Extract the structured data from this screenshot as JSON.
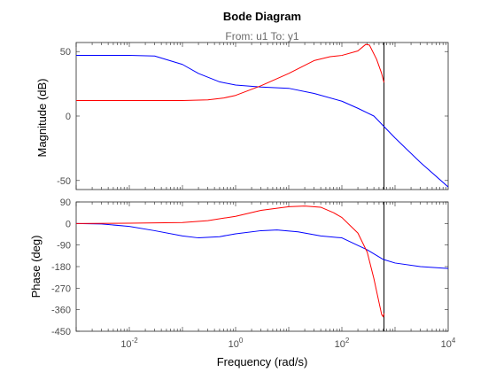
{
  "chart_data": {
    "type": "line",
    "title": "Bode Diagram",
    "subtitle": "From: u1  To: y1",
    "xlabel": "Frequency  (rad/s)",
    "xscale": "log",
    "xlim": [
      0.001,
      10000
    ],
    "x_ticks": [
      {
        "base": "10",
        "exp": "-2",
        "value": 0.01
      },
      {
        "base": "10",
        "exp": "0",
        "value": 1
      },
      {
        "base": "10",
        "exp": "2",
        "value": 100
      },
      {
        "base": "10",
        "exp": "4",
        "value": 10000
      }
    ],
    "grid": false,
    "vertical_marker": {
      "x": 620,
      "color": "#000000"
    },
    "panels": [
      {
        "name": "magnitude",
        "ylabel": "Magnitude (dB)",
        "ylim": [
          -57,
          57
        ],
        "yticks": [
          50,
          0,
          -50
        ],
        "ytick_labels": [
          "50",
          "0",
          "-50"
        ],
        "series": [
          {
            "color": "#0000ff",
            "points": [
              [
                0.001,
                47
              ],
              [
                0.01,
                47
              ],
              [
                0.03,
                46.5
              ],
              [
                0.1,
                40
              ],
              [
                0.2,
                33
              ],
              [
                0.5,
                26.5
              ],
              [
                1,
                24
              ],
              [
                3,
                22.5
              ],
              [
                10,
                21.5
              ],
              [
                30,
                17.5
              ],
              [
                100,
                11.5
              ],
              [
                200,
                6
              ],
              [
                400,
                0
              ],
              [
                1000,
                -17
              ],
              [
                3000,
                -36
              ],
              [
                10000,
                -55
              ]
            ]
          },
          {
            "color": "#ff0000",
            "points": [
              [
                0.001,
                12
              ],
              [
                0.01,
                12
              ],
              [
                0.1,
                12
              ],
              [
                0.3,
                12.5
              ],
              [
                0.6,
                14
              ],
              [
                1,
                16
              ],
              [
                3,
                23.5
              ],
              [
                10,
                33
              ],
              [
                30,
                43
              ],
              [
                60,
                46
              ],
              [
                100,
                47
              ],
              [
                200,
                50.5
              ],
              [
                280,
                55.5
              ],
              [
                330,
                55
              ],
              [
                450,
                44
              ],
              [
                560,
                33
              ],
              [
                620,
                26
              ]
            ]
          }
        ]
      },
      {
        "name": "phase",
        "ylabel": "Phase (deg)",
        "ylim": [
          -450,
          90
        ],
        "yticks": [
          90,
          0,
          -90,
          -180,
          -270,
          -360,
          -450
        ],
        "ytick_labels": [
          "90",
          "0",
          "-90",
          "-180",
          "-270",
          "-360",
          "-450"
        ],
        "series": [
          {
            "color": "#0000ff",
            "points": [
              [
                0.001,
                0
              ],
              [
                0.003,
                -2
              ],
              [
                0.01,
                -12
              ],
              [
                0.03,
                -30
              ],
              [
                0.1,
                -52
              ],
              [
                0.2,
                -60
              ],
              [
                0.5,
                -55
              ],
              [
                1,
                -43
              ],
              [
                3,
                -30
              ],
              [
                6,
                -27
              ],
              [
                15,
                -35
              ],
              [
                40,
                -52
              ],
              [
                100,
                -60
              ],
              [
                300,
                -110
              ],
              [
                600,
                -150
              ],
              [
                1000,
                -165
              ],
              [
                3000,
                -180
              ],
              [
                10000,
                -188
              ]
            ]
          },
          {
            "color": "#ff0000",
            "points": [
              [
                0.001,
                0
              ],
              [
                0.01,
                1
              ],
              [
                0.1,
                4
              ],
              [
                0.3,
                12
              ],
              [
                1,
                30
              ],
              [
                3,
                55
              ],
              [
                10,
                70
              ],
              [
                20,
                73
              ],
              [
                40,
                68
              ],
              [
                70,
                45
              ],
              [
                100,
                25
              ],
              [
                200,
                -40
              ],
              [
                300,
                -120
              ],
              [
                400,
                -230
              ],
              [
                500,
                -330
              ],
              [
                560,
                -380
              ],
              [
                600,
                -390
              ],
              [
                620,
                -375
              ]
            ]
          }
        ]
      }
    ]
  }
}
